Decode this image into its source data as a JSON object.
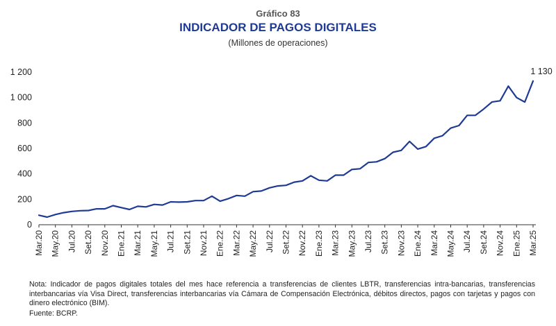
{
  "figure_label": "Gráfico 83",
  "title": "INDICADOR DE PAGOS DIGITALES",
  "subtitle": "(Millones de operaciones)",
  "note": "Nota: Indicador de pagos digitales totales del mes hace referencia a transferencias de clientes LBTR, transferencias intra-bancarias, transferencias interbancarias vía Visa Direct, transferencias interbancarias vía Cámara de Compensación Electrónica, débitos directos, pagos con tarjetas y pagos con dinero electrónico (BIM).",
  "source": "Fuente: BCRP.",
  "colors": {
    "line": "#1f3a93",
    "axis": "#333333",
    "text": "#222222"
  },
  "chart_data": {
    "type": "line",
    "title": "INDICADOR DE PAGOS DIGITALES",
    "ylabel": "(Millones de operaciones)",
    "ylim": [
      0,
      1200
    ],
    "yticks": [
      0,
      200,
      400,
      600,
      800,
      1000,
      1200
    ],
    "ytick_labels": [
      "0",
      "200",
      "400",
      "600",
      "800",
      "1 000",
      "1 200"
    ],
    "grid": false,
    "xtick_labels": [
      "Mar.20",
      "May.20",
      "Jul.20",
      "Set.20",
      "Nov.20",
      "Ene.21",
      "Mar.21",
      "May.21",
      "Jul.21",
      "Set.21",
      "Nov.21",
      "Ene.22",
      "Mar.22",
      "May.22",
      "Jul.22",
      "Set.22",
      "Nov.22",
      "Ene.23",
      "Mar.23",
      "May.23",
      "Jul.23",
      "Set.23",
      "Nov.23",
      "Ene.24",
      "Mar.24",
      "May.24",
      "Jul.24",
      "Set.24",
      "Nov.24",
      "Ene.25",
      "Mar.25"
    ],
    "annotation": {
      "text": "1 130",
      "value": 1130
    },
    "series": [
      {
        "x": [
          "Mar.20",
          "Abr.20",
          "May.20",
          "Jun.20",
          "Jul.20",
          "Ago.20",
          "Set.20",
          "Oct.20",
          "Nov.20",
          "Dic.20",
          "Ene.21",
          "Feb.21",
          "Mar.21",
          "Abr.21",
          "May.21",
          "Jun.21",
          "Jul.21",
          "Ago.21",
          "Set.21",
          "Oct.21",
          "Nov.21",
          "Dic.21",
          "Ene.22",
          "Feb.22",
          "Mar.22",
          "Abr.22",
          "May.22",
          "Jun.22",
          "Jul.22",
          "Ago.22",
          "Set.22",
          "Oct.22",
          "Nov.22",
          "Dic.22",
          "Ene.23",
          "Feb.23",
          "Mar.23",
          "Abr.23",
          "May.23",
          "Jun.23",
          "Jul.23",
          "Ago.23",
          "Set.23",
          "Oct.23",
          "Nov.23",
          "Dic.23",
          "Ene.24",
          "Feb.24",
          "Mar.24",
          "Abr.24",
          "May.24",
          "Jun.24",
          "Jul.24",
          "Ago.24",
          "Set.24",
          "Oct.24",
          "Nov.24",
          "Dic.24",
          "Ene.25",
          "Feb.25",
          "Mar.25"
        ],
        "values": [
          75,
          60,
          80,
          95,
          105,
          110,
          112,
          125,
          125,
          150,
          135,
          120,
          145,
          140,
          160,
          155,
          180,
          178,
          180,
          190,
          190,
          225,
          185,
          205,
          230,
          225,
          260,
          265,
          290,
          305,
          310,
          335,
          345,
          385,
          350,
          345,
          390,
          390,
          435,
          440,
          490,
          495,
          520,
          570,
          585,
          655,
          595,
          615,
          680,
          700,
          760,
          780,
          860,
          860,
          910,
          965,
          975,
          1090,
          1000,
          965,
          1130
        ]
      }
    ]
  }
}
